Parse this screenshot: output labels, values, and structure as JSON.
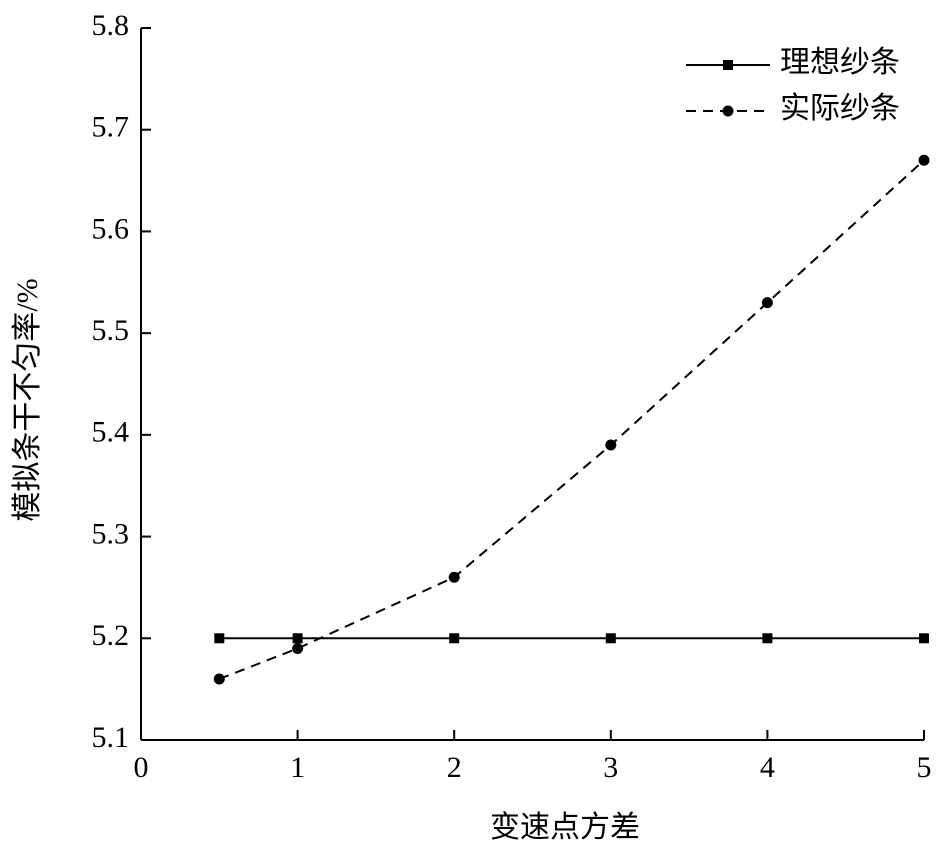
{
  "chart_data": {
    "type": "line",
    "x_label": "变速点方差",
    "y_label": "模拟条干不匀率/%",
    "x": [
      0.5,
      1,
      2,
      3,
      4,
      5
    ],
    "series": [
      {
        "name": "理想纱条",
        "color": "#000000",
        "marker": "square",
        "dash": "solid",
        "values": [
          5.2,
          5.2,
          5.2,
          5.2,
          5.2,
          5.2
        ]
      },
      {
        "name": "实际纱条",
        "color": "#000000",
        "marker": "circle",
        "dash": "dashed",
        "values": [
          5.16,
          5.19,
          5.26,
          5.39,
          5.53,
          5.67
        ]
      }
    ],
    "xlim": [
      0,
      5
    ],
    "xticks": [
      0,
      1,
      2,
      3,
      4,
      5
    ],
    "ylim": [
      5.1,
      5.8
    ],
    "yticks": [
      5.1,
      5.2,
      5.3,
      5.4,
      5.5,
      5.6,
      5.7,
      5.8
    ],
    "legend": "upper right"
  }
}
